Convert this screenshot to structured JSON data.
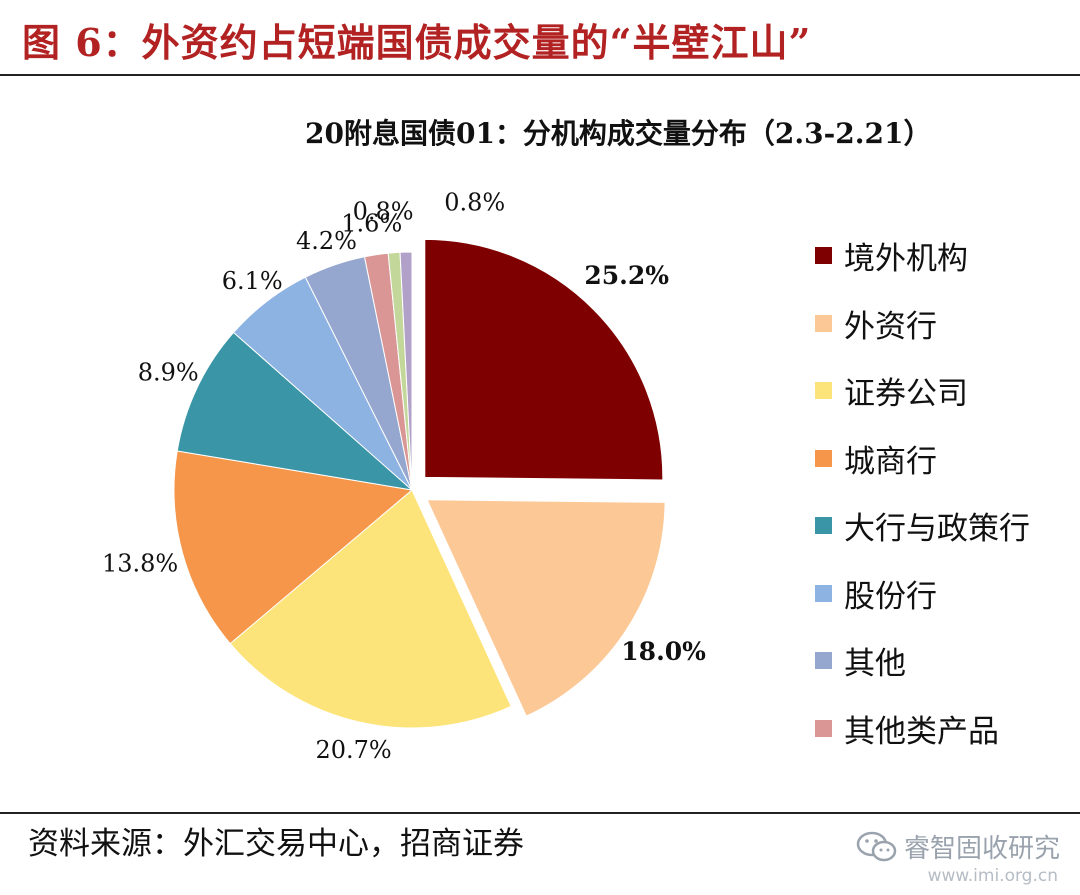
{
  "figure_title": "图 6：外资约占短端国债成交量的“半壁江山”",
  "source": "资料来源：外汇交易中心，招商证券",
  "watermark": {
    "text": "睿智固收研究",
    "url": "www.imi.org.cn"
  },
  "chart_data": {
    "type": "pie",
    "title": "20附息国债01：分机构成交量分布（2.3-2.21）",
    "legend_position": "right",
    "slices": [
      {
        "name": "境外机构",
        "value": 25.2,
        "label": "25.2%",
        "color": "#7f0000",
        "exploded": true,
        "bold": true
      },
      {
        "name": "外资行",
        "value": 18.0,
        "label": "18.0%",
        "color": "#fcc896",
        "exploded": true,
        "bold": true
      },
      {
        "name": "证券公司",
        "value": 20.7,
        "label": "20.7%",
        "color": "#fde47a"
      },
      {
        "name": "城商行",
        "value": 13.8,
        "label": "13.8%",
        "color": "#f5964a"
      },
      {
        "name": "大行与政策行",
        "value": 8.9,
        "label": "8.9%",
        "color": "#3a96a6"
      },
      {
        "name": "股份行",
        "value": 6.1,
        "label": "6.1%",
        "color": "#8db3e2"
      },
      {
        "name": "其他",
        "value": 4.2,
        "label": "4.2%",
        "color": "#95a7cf"
      },
      {
        "name": "其他类产品",
        "value": 1.6,
        "label": "1.6%",
        "color": "#d99694"
      },
      {
        "name": "",
        "value": 0.8,
        "label": "0.8%",
        "color": "#c4d79b"
      },
      {
        "name": "",
        "value": 0.8,
        "label": "0.8%",
        "color": "#b1a0c7"
      }
    ]
  }
}
